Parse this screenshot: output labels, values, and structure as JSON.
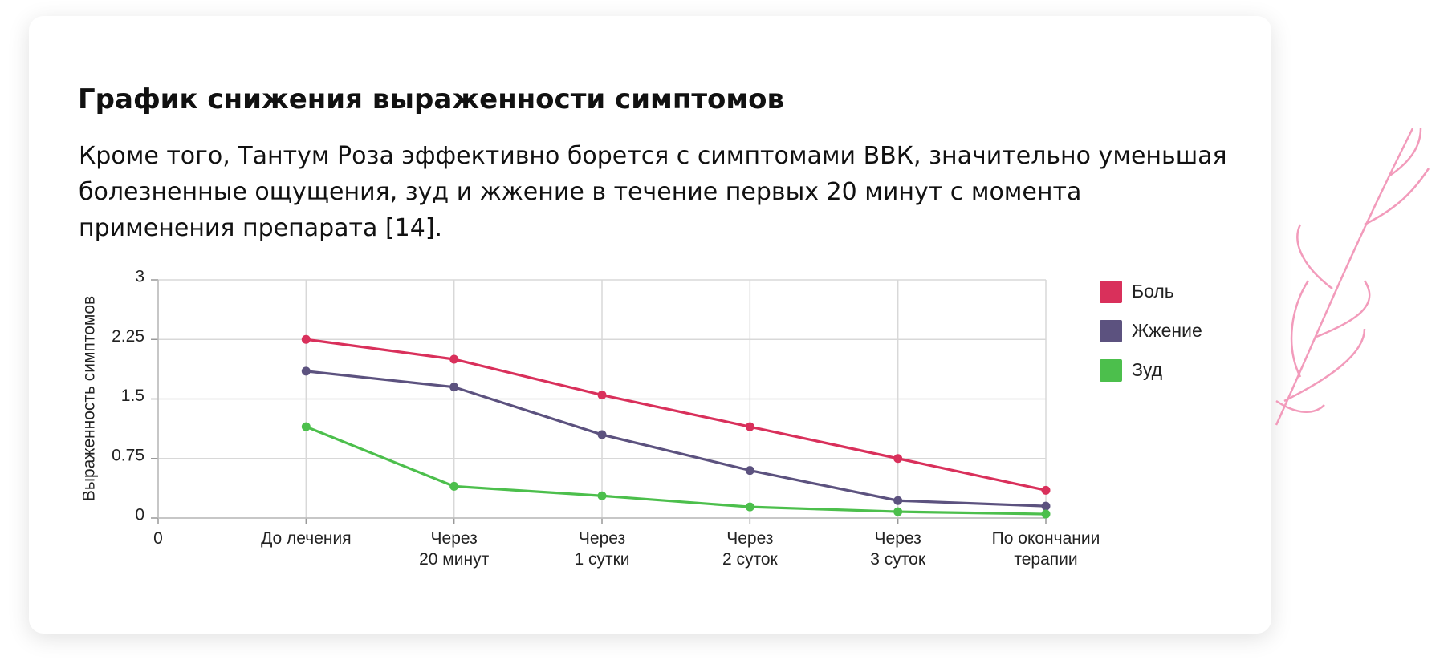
{
  "header": {
    "title": "График снижения выраженности симптомов",
    "paragraph": "Кроме того, Тантум Роза эффективно борется с симптомами ВВК, значительно уменьшая болезненные ощущения, зуд и жжение в течение первых 20 минут с момента применения препарата [14]."
  },
  "chart_data": {
    "type": "line",
    "y_label": "Выраженность симптомов",
    "categories": [
      "0",
      "До лечения",
      "Через\n20 минут",
      "Через\n1 сутки",
      "Через\n2 суток",
      "Через\n3 суток",
      "По окончании\nтерапии"
    ],
    "series": [
      {
        "name": "Боль",
        "color": "#d9305b",
        "values": [
          null,
          2.25,
          2.0,
          1.55,
          1.15,
          0.75,
          0.35
        ]
      },
      {
        "name": "Жжение",
        "color": "#5c527f",
        "values": [
          null,
          1.85,
          1.65,
          1.05,
          0.6,
          0.22,
          0.15
        ]
      },
      {
        "name": "Зуд",
        "color": "#4cbf4c",
        "values": [
          null,
          1.15,
          0.4,
          0.28,
          0.14,
          0.08,
          0.05
        ]
      }
    ],
    "ylim": [
      0,
      3
    ],
    "yticks": [
      0,
      0.75,
      1.5,
      2.25,
      3
    ],
    "grid": true,
    "legend": "right"
  }
}
